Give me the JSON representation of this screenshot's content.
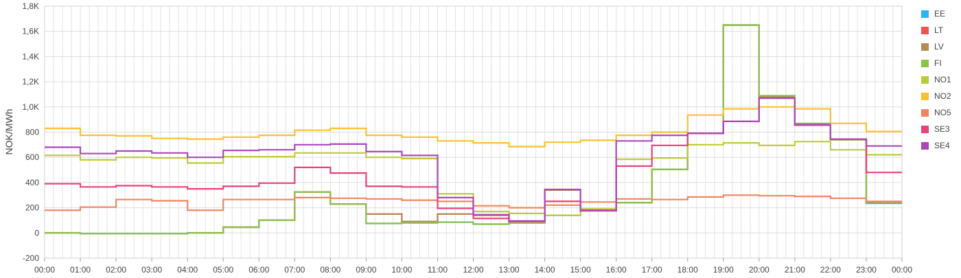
{
  "chart_data": {
    "type": "line",
    "ylabel": "NOK/MWh",
    "xlabel": "",
    "ylim": [
      -200,
      1800
    ],
    "y_ticks": [
      "-200",
      "0",
      "200",
      "400",
      "600",
      "800",
      "1,0K",
      "1,2K",
      "1,4K",
      "1,6K",
      "1,8K"
    ],
    "y_tick_values": [
      -200,
      0,
      200,
      400,
      600,
      800,
      1000,
      1200,
      1400,
      1600,
      1800
    ],
    "x_ticks": [
      "00:00",
      "01:00",
      "02:00",
      "03:00",
      "04:00",
      "05:00",
      "06:00",
      "07:00",
      "08:00",
      "09:00",
      "10:00",
      "11:00",
      "12:00",
      "13:00",
      "14:00",
      "15:00",
      "16:00",
      "17:00",
      "18:00",
      "19:00",
      "20:00",
      "21:00",
      "22:00",
      "23:00",
      "00:00"
    ],
    "step": true,
    "grid": true,
    "legend_position": "right",
    "series": [
      {
        "name": "EE",
        "color": "#29b6f6",
        "values": [
          0,
          -5,
          -5,
          -5,
          0,
          45,
          100,
          325,
          230,
          75,
          80,
          85,
          70,
          80,
          140,
          180,
          240,
          505,
          790,
          1650,
          1085,
          865,
          740,
          235
        ]
      },
      {
        "name": "LT",
        "color": "#ef5350",
        "values": [
          0,
          -5,
          -5,
          -5,
          0,
          45,
          100,
          325,
          230,
          150,
          90,
          150,
          140,
          80,
          250,
          180,
          240,
          505,
          790,
          1650,
          1080,
          860,
          740,
          240
        ]
      },
      {
        "name": "LV",
        "color": "#b58a55",
        "values": [
          0,
          -5,
          -5,
          -5,
          0,
          45,
          100,
          325,
          230,
          150,
          90,
          150,
          140,
          80,
          340,
          180,
          240,
          505,
          790,
          1650,
          1080,
          860,
          740,
          240
        ]
      },
      {
        "name": "FI",
        "color": "#8bc34a",
        "values": [
          0,
          -5,
          -5,
          -5,
          0,
          45,
          100,
          325,
          230,
          75,
          80,
          85,
          70,
          80,
          140,
          180,
          240,
          505,
          790,
          1650,
          1090,
          870,
          740,
          245
        ]
      },
      {
        "name": "NO1",
        "color": "#c0ca33",
        "values": [
          615,
          580,
          600,
          595,
          555,
          605,
          605,
          635,
          635,
          600,
          590,
          310,
          170,
          155,
          140,
          190,
          585,
          595,
          700,
          715,
          695,
          725,
          660,
          620
        ]
      },
      {
        "name": "NO2",
        "color": "#fbc02d",
        "values": [
          830,
          775,
          770,
          750,
          745,
          760,
          775,
          815,
          830,
          775,
          760,
          730,
          715,
          685,
          720,
          735,
          775,
          800,
          935,
          985,
          1000,
          985,
          870,
          805
        ]
      },
      {
        "name": "NO5",
        "color": "#f4845f",
        "values": [
          180,
          205,
          265,
          255,
          180,
          265,
          265,
          280,
          275,
          270,
          260,
          250,
          215,
          200,
          220,
          245,
          270,
          265,
          285,
          300,
          295,
          290,
          275,
          250
        ]
      },
      {
        "name": "SE3",
        "color": "#ec407a",
        "values": [
          390,
          365,
          375,
          365,
          350,
          370,
          395,
          520,
          475,
          370,
          365,
          195,
          115,
          90,
          250,
          180,
          530,
          695,
          790,
          885,
          1070,
          855,
          745,
          480
        ]
      },
      {
        "name": "SE4",
        "color": "#ab47bc",
        "values": [
          680,
          630,
          650,
          635,
          600,
          655,
          660,
          700,
          705,
          645,
          615,
          280,
          145,
          95,
          345,
          175,
          730,
          775,
          790,
          885,
          1070,
          860,
          745,
          690
        ]
      }
    ]
  }
}
